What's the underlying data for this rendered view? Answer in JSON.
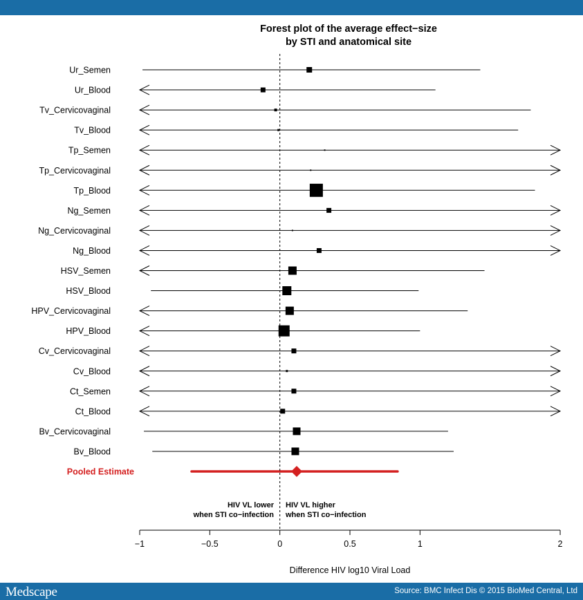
{
  "header": {
    "bar_color": "#1a6da6"
  },
  "footer": {
    "brand": "Medscape",
    "source": "Source: BMC Infect Dis © 2015 BioMed Central, Ltd"
  },
  "chart_data": {
    "type": "forest",
    "title_lines": [
      "Forest plot of the average effect−size",
      "by STI and anatomical site"
    ],
    "xlabel": "Difference HIV log10 Viral Load",
    "xlim": [
      -1,
      2
    ],
    "xticks": [
      -1,
      -0.5,
      0,
      0.5,
      1,
      2
    ],
    "xtick_labels": [
      "−1",
      "−0.5",
      "0",
      "0.5",
      "1",
      "2"
    ],
    "reference_line": 0,
    "annotation_left": [
      "HIV VL lower",
      "when STI co−infection"
    ],
    "annotation_right": [
      "HIV VL higher",
      "when STI co−infection"
    ],
    "marker_color": "#000000",
    "pooled_color": "#d42020",
    "studies": [
      {
        "label": "Ur_Semen",
        "estimate": 0.21,
        "lower": -0.98,
        "upper": 1.43,
        "left_arrow": false,
        "right_arrow": false,
        "weight": 8
      },
      {
        "label": "Ur_Blood",
        "estimate": -0.12,
        "lower": -1.0,
        "upper": 1.11,
        "left_arrow": true,
        "right_arrow": false,
        "weight": 7
      },
      {
        "label": "Tv_Cervicovaginal",
        "estimate": -0.03,
        "lower": -1.0,
        "upper": 1.79,
        "left_arrow": true,
        "right_arrow": false,
        "weight": 4
      },
      {
        "label": "Tv_Blood",
        "estimate": -0.01,
        "lower": -1.0,
        "upper": 1.7,
        "left_arrow": true,
        "right_arrow": false,
        "weight": 3
      },
      {
        "label": "Tp_Semen",
        "estimate": 0.32,
        "lower": -1.0,
        "upper": 2.0,
        "left_arrow": true,
        "right_arrow": true,
        "weight": 2
      },
      {
        "label": "Tp_Cervicovaginal",
        "estimate": 0.22,
        "lower": -1.0,
        "upper": 2.0,
        "left_arrow": true,
        "right_arrow": true,
        "weight": 2
      },
      {
        "label": "Tp_Blood",
        "estimate": 0.26,
        "lower": -1.0,
        "upper": 1.82,
        "left_arrow": true,
        "right_arrow": false,
        "weight": 19
      },
      {
        "label": "Ng_Semen",
        "estimate": 0.35,
        "lower": -1.0,
        "upper": 2.0,
        "left_arrow": true,
        "right_arrow": true,
        "weight": 7
      },
      {
        "label": "Ng_Cervicovaginal",
        "estimate": 0.09,
        "lower": -1.0,
        "upper": 2.0,
        "left_arrow": true,
        "right_arrow": true,
        "weight": 2
      },
      {
        "label": "Ng_Blood",
        "estimate": 0.28,
        "lower": -1.0,
        "upper": 2.0,
        "left_arrow": true,
        "right_arrow": true,
        "weight": 7
      },
      {
        "label": "HSV_Semen",
        "estimate": 0.09,
        "lower": -1.0,
        "upper": 1.46,
        "left_arrow": true,
        "right_arrow": false,
        "weight": 12
      },
      {
        "label": "HSV_Blood",
        "estimate": 0.05,
        "lower": -0.92,
        "upper": 0.99,
        "left_arrow": false,
        "right_arrow": false,
        "weight": 13
      },
      {
        "label": "HPV_Cervicovaginal",
        "estimate": 0.07,
        "lower": -1.0,
        "upper": 1.34,
        "left_arrow": true,
        "right_arrow": false,
        "weight": 12
      },
      {
        "label": "HPV_Blood",
        "estimate": 0.03,
        "lower": -1.0,
        "upper": 1.0,
        "left_arrow": true,
        "right_arrow": false,
        "weight": 16
      },
      {
        "label": "Cv_Cervicovaginal",
        "estimate": 0.1,
        "lower": -1.0,
        "upper": 2.0,
        "left_arrow": true,
        "right_arrow": true,
        "weight": 7
      },
      {
        "label": "Cv_Blood",
        "estimate": 0.05,
        "lower": -1.0,
        "upper": 2.0,
        "left_arrow": true,
        "right_arrow": true,
        "weight": 3
      },
      {
        "label": "Ct_Semen",
        "estimate": 0.1,
        "lower": -1.0,
        "upper": 2.0,
        "left_arrow": true,
        "right_arrow": true,
        "weight": 7
      },
      {
        "label": "Ct_Blood",
        "estimate": 0.02,
        "lower": -1.0,
        "upper": 2.0,
        "left_arrow": true,
        "right_arrow": true,
        "weight": 7
      },
      {
        "label": "Bv_Cervicovaginal",
        "estimate": 0.12,
        "lower": -0.97,
        "upper": 1.2,
        "left_arrow": false,
        "right_arrow": false,
        "weight": 11
      },
      {
        "label": "Bv_Blood",
        "estimate": 0.11,
        "lower": -0.91,
        "upper": 1.24,
        "left_arrow": false,
        "right_arrow": false,
        "weight": 11
      }
    ],
    "pooled": {
      "label": "Pooled Estimate",
      "estimate": 0.12,
      "lower": -0.63,
      "upper": 0.84
    }
  }
}
